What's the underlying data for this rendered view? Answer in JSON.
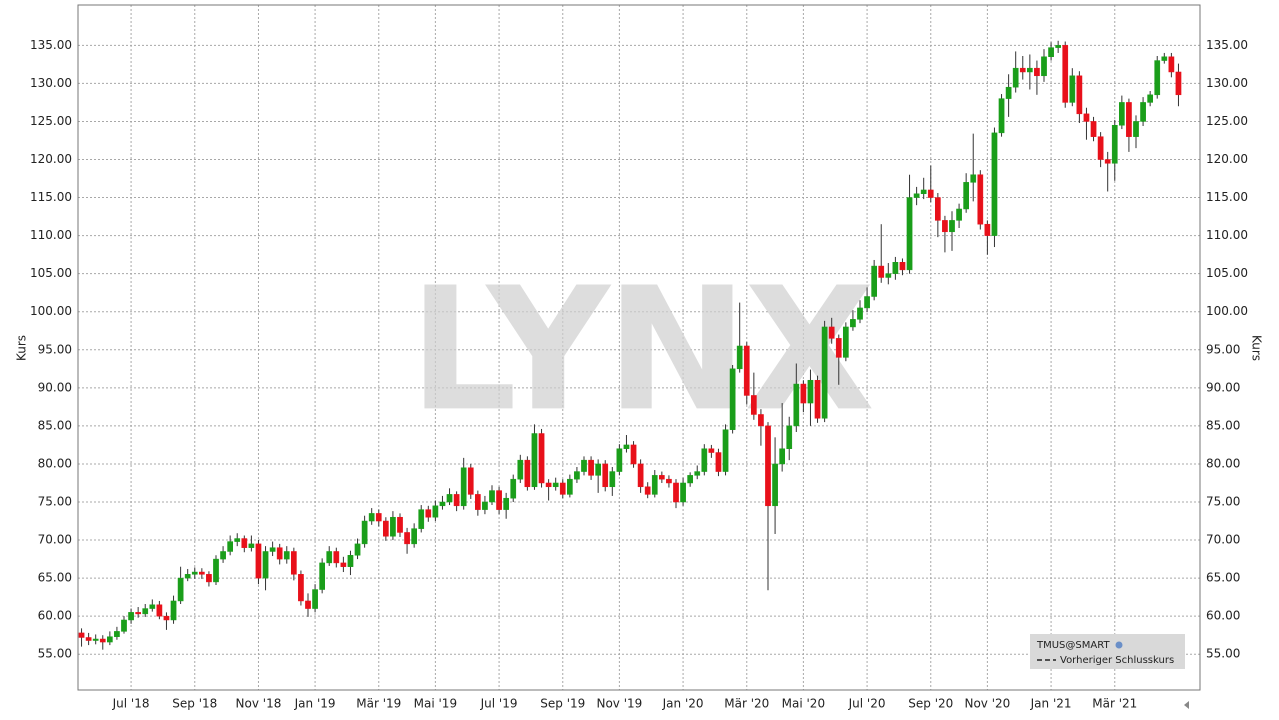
{
  "chart_data": {
    "type": "candlestick",
    "watermark": "LYNX",
    "y_label": "Kurs",
    "y2_label": "Kurs",
    "previous_close_label": "Vorheriger Schlusskurs",
    "up_color": "#1a9e1a",
    "down_color": "#e8101a",
    "grid": true,
    "ylim": [
      50.3,
      140.3
    ],
    "yticks": [
      {
        "value": 55,
        "label": "55.00"
      },
      {
        "value": 60,
        "label": "60.00"
      },
      {
        "value": 65,
        "label": "65.00"
      },
      {
        "value": 70,
        "label": "70.00"
      },
      {
        "value": 75,
        "label": "75.00"
      },
      {
        "value": 80,
        "label": "80.00"
      },
      {
        "value": 85,
        "label": "85.00"
      },
      {
        "value": 90,
        "label": "90.00"
      },
      {
        "value": 95,
        "label": "95.00"
      },
      {
        "value": 100,
        "label": "100.00"
      },
      {
        "value": 105,
        "label": "105.00"
      },
      {
        "value": 110,
        "label": "110.00"
      },
      {
        "value": 115,
        "label": "115.00"
      },
      {
        "value": 120,
        "label": "120.00"
      },
      {
        "value": 125,
        "label": "125.00"
      },
      {
        "value": 130,
        "label": "130.00"
      },
      {
        "value": 135,
        "label": "135.00"
      }
    ],
    "categories": [
      null,
      null,
      null,
      null,
      null,
      null,
      null,
      "Jul '18",
      null,
      null,
      null,
      null,
      null,
      null,
      null,
      null,
      "Sep '18",
      null,
      null,
      null,
      null,
      null,
      null,
      null,
      null,
      "Nov '18",
      null,
      null,
      null,
      null,
      null,
      null,
      null,
      "Jan '19",
      null,
      null,
      null,
      null,
      null,
      null,
      null,
      null,
      "Mär '19",
      null,
      null,
      null,
      null,
      null,
      null,
      null,
      "Mai '19",
      null,
      null,
      null,
      null,
      null,
      null,
      null,
      null,
      "Jul '19",
      null,
      null,
      null,
      null,
      null,
      null,
      null,
      null,
      "Sep '19",
      null,
      null,
      null,
      null,
      null,
      null,
      null,
      "Nov '19",
      null,
      null,
      null,
      null,
      null,
      null,
      null,
      null,
      "Jan '20",
      null,
      null,
      null,
      null,
      null,
      null,
      null,
      null,
      "Mär '20",
      null,
      null,
      null,
      null,
      null,
      null,
      null,
      "Mai '20",
      null,
      null,
      null,
      null,
      null,
      null,
      null,
      null,
      "Jul '20",
      null,
      null,
      null,
      null,
      null,
      null,
      null,
      null,
      "Sep '20",
      null,
      null,
      null,
      null,
      null,
      null,
      null,
      "Nov '20",
      null,
      null,
      null,
      null,
      null,
      null,
      null,
      null,
      "Jan '21",
      null,
      null,
      null,
      null,
      null,
      null,
      null,
      null,
      "Mär '21",
      null,
      null,
      null,
      null,
      null,
      null,
      null,
      null,
      null
    ],
    "series": [
      {
        "name": "TMUS@SMART",
        "values": [
          [
            57.8,
            58.4,
            56.0,
            57.2
          ],
          [
            57.2,
            57.8,
            56.2,
            56.8
          ],
          [
            56.8,
            57.6,
            56.3,
            57.0
          ],
          [
            57.0,
            57.5,
            55.6,
            56.6
          ],
          [
            56.6,
            58.0,
            56.2,
            57.3
          ],
          [
            57.3,
            58.6,
            56.9,
            58.0
          ],
          [
            58.0,
            60.0,
            57.7,
            59.5
          ],
          [
            59.5,
            61.0,
            59.0,
            60.5
          ],
          [
            60.5,
            61.2,
            59.8,
            60.3
          ],
          [
            60.3,
            61.6,
            59.9,
            61.0
          ],
          [
            61.0,
            62.2,
            60.6,
            61.5
          ],
          [
            61.5,
            62.0,
            59.6,
            60.0
          ],
          [
            60.0,
            60.5,
            58.2,
            59.5
          ],
          [
            59.5,
            62.7,
            59.0,
            62.0
          ],
          [
            62.0,
            66.5,
            61.6,
            65.0
          ],
          [
            65.0,
            66.2,
            64.6,
            65.5
          ],
          [
            65.5,
            66.4,
            64.9,
            65.8
          ],
          [
            65.8,
            66.3,
            64.9,
            65.5
          ],
          [
            65.5,
            65.9,
            63.9,
            64.5
          ],
          [
            64.5,
            68.0,
            64.1,
            67.5
          ],
          [
            67.5,
            69.2,
            67.0,
            68.5
          ],
          [
            68.5,
            70.6,
            68.0,
            69.8
          ],
          [
            69.8,
            70.9,
            69.2,
            70.2
          ],
          [
            70.2,
            70.6,
            68.4,
            69.0
          ],
          [
            69.0,
            70.6,
            68.5,
            69.5
          ],
          [
            69.5,
            70.0,
            64.2,
            65.0
          ],
          [
            65.0,
            69.2,
            63.4,
            68.5
          ],
          [
            68.5,
            69.8,
            67.9,
            69.0
          ],
          [
            69.0,
            69.5,
            66.8,
            67.5
          ],
          [
            67.5,
            69.2,
            66.9,
            68.5
          ],
          [
            68.5,
            69.0,
            64.7,
            65.5
          ],
          [
            65.5,
            66.0,
            61.4,
            62.0
          ],
          [
            62.0,
            63.0,
            59.9,
            61.0
          ],
          [
            61.0,
            64.2,
            60.5,
            63.5
          ],
          [
            63.5,
            67.6,
            63.0,
            67.0
          ],
          [
            67.0,
            69.2,
            66.6,
            68.5
          ],
          [
            68.5,
            69.0,
            66.4,
            67.0
          ],
          [
            67.0,
            67.8,
            65.8,
            66.5
          ],
          [
            66.5,
            68.6,
            65.4,
            68.0
          ],
          [
            68.0,
            70.2,
            67.5,
            69.5
          ],
          [
            69.5,
            73.2,
            69.0,
            72.5
          ],
          [
            72.5,
            74.2,
            72.0,
            73.5
          ],
          [
            73.5,
            74.0,
            71.8,
            72.5
          ],
          [
            72.5,
            73.0,
            69.9,
            70.5
          ],
          [
            70.5,
            73.8,
            70.0,
            73.0
          ],
          [
            73.0,
            73.5,
            70.4,
            71.0
          ],
          [
            71.0,
            71.6,
            68.2,
            69.5
          ],
          [
            69.5,
            72.2,
            69.0,
            71.5
          ],
          [
            71.5,
            74.6,
            71.0,
            74.0
          ],
          [
            74.0,
            74.5,
            72.4,
            73.0
          ],
          [
            73.0,
            75.2,
            72.5,
            74.5
          ],
          [
            74.5,
            75.8,
            74.0,
            75.0
          ],
          [
            75.0,
            76.8,
            74.6,
            76.0
          ],
          [
            76.0,
            76.4,
            73.8,
            74.5
          ],
          [
            74.5,
            80.8,
            74.0,
            79.5
          ],
          [
            79.5,
            80.0,
            75.4,
            76.0
          ],
          [
            76.0,
            76.5,
            73.2,
            74.0
          ],
          [
            74.0,
            75.8,
            73.4,
            75.0
          ],
          [
            75.0,
            77.2,
            74.6,
            76.5
          ],
          [
            76.5,
            77.0,
            73.4,
            74.0
          ],
          [
            74.0,
            76.2,
            72.8,
            75.5
          ],
          [
            75.5,
            78.6,
            75.0,
            78.0
          ],
          [
            78.0,
            81.2,
            77.5,
            80.5
          ],
          [
            80.5,
            81.0,
            76.5,
            77.0
          ],
          [
            77.0,
            85.2,
            76.6,
            84.0
          ],
          [
            84.0,
            84.6,
            76.9,
            77.5
          ],
          [
            77.5,
            78.0,
            75.2,
            77.0
          ],
          [
            77.0,
            78.2,
            76.5,
            77.5
          ],
          [
            77.5,
            78.0,
            75.5,
            76.0
          ],
          [
            76.0,
            78.6,
            75.6,
            78.0
          ],
          [
            78.0,
            79.6,
            77.5,
            79.0
          ],
          [
            79.0,
            81.0,
            78.5,
            80.5
          ],
          [
            80.5,
            81.0,
            77.9,
            78.5
          ],
          [
            78.5,
            80.6,
            76.2,
            80.0
          ],
          [
            80.0,
            80.5,
            76.4,
            77.0
          ],
          [
            77.0,
            79.6,
            75.8,
            79.0
          ],
          [
            79.0,
            82.6,
            78.5,
            82.0
          ],
          [
            82.0,
            83.8,
            81.5,
            82.5
          ],
          [
            82.5,
            83.0,
            79.5,
            80.0
          ],
          [
            80.0,
            80.6,
            76.2,
            77.0
          ],
          [
            77.0,
            77.6,
            75.5,
            76.0
          ],
          [
            76.0,
            79.2,
            75.6,
            78.5
          ],
          [
            78.5,
            79.0,
            77.5,
            78.0
          ],
          [
            78.0,
            78.5,
            76.9,
            77.5
          ],
          [
            77.5,
            78.0,
            74.2,
            75.0
          ],
          [
            75.0,
            78.2,
            74.5,
            77.5
          ],
          [
            77.5,
            78.9,
            77.0,
            78.5
          ],
          [
            78.5,
            79.8,
            78.0,
            79.0
          ],
          [
            79.0,
            82.6,
            78.5,
            82.0
          ],
          [
            82.0,
            82.5,
            80.8,
            81.5
          ],
          [
            81.5,
            82.0,
            78.4,
            79.0
          ],
          [
            79.0,
            85.2,
            78.5,
            84.5
          ],
          [
            84.5,
            93.0,
            84.0,
            92.5
          ],
          [
            92.5,
            101.2,
            92.0,
            95.5
          ],
          [
            95.5,
            96.0,
            87.8,
            89.0
          ],
          [
            89.0,
            92.0,
            85.8,
            86.5
          ],
          [
            86.5,
            87.2,
            82.4,
            85.0
          ],
          [
            85.0,
            85.5,
            63.4,
            74.5
          ],
          [
            74.5,
            83.5,
            70.8,
            80.0
          ],
          [
            80.0,
            88.0,
            79.0,
            82.0
          ],
          [
            82.0,
            86.2,
            80.5,
            85.0
          ],
          [
            85.0,
            93.2,
            84.2,
            90.5
          ],
          [
            90.5,
            91.0,
            86.8,
            88.0
          ],
          [
            88.0,
            92.4,
            85.0,
            91.0
          ],
          [
            91.0,
            91.6,
            85.4,
            86.0
          ],
          [
            86.0,
            98.8,
            85.5,
            98.0
          ],
          [
            98.0,
            99.2,
            95.8,
            96.5
          ],
          [
            96.5,
            97.0,
            90.4,
            94.0
          ],
          [
            94.0,
            98.6,
            93.5,
            98.0
          ],
          [
            98.0,
            100.2,
            97.5,
            99.0
          ],
          [
            99.0,
            101.5,
            98.5,
            100.5
          ],
          [
            100.5,
            103.2,
            100.0,
            102.0
          ],
          [
            102.0,
            106.8,
            101.5,
            106.0
          ],
          [
            106.0,
            111.5,
            103.8,
            104.5
          ],
          [
            104.5,
            106.4,
            103.6,
            105.0
          ],
          [
            105.0,
            107.2,
            104.2,
            106.5
          ],
          [
            106.5,
            107.0,
            104.8,
            105.5
          ],
          [
            105.5,
            118.0,
            105.0,
            115.0
          ],
          [
            115.0,
            116.4,
            114.0,
            115.5
          ],
          [
            115.5,
            117.6,
            114.8,
            116.0
          ],
          [
            116.0,
            119.2,
            114.4,
            115.0
          ],
          [
            115.0,
            115.6,
            109.8,
            112.0
          ],
          [
            112.0,
            112.6,
            107.8,
            110.5
          ],
          [
            110.5,
            113.2,
            108.0,
            112.0
          ],
          [
            112.0,
            114.2,
            111.0,
            113.5
          ],
          [
            113.5,
            118.2,
            113.0,
            117.0
          ],
          [
            117.0,
            123.4,
            114.5,
            118.0
          ],
          [
            118.0,
            118.6,
            110.8,
            111.5
          ],
          [
            111.5,
            112.0,
            107.5,
            110.0
          ],
          [
            110.0,
            124.2,
            108.5,
            123.5
          ],
          [
            123.5,
            128.6,
            123.0,
            128.0
          ],
          [
            128.0,
            131.2,
            125.6,
            129.5
          ],
          [
            129.5,
            134.2,
            128.8,
            132.0
          ],
          [
            132.0,
            133.6,
            130.5,
            131.5
          ],
          [
            131.5,
            133.8,
            129.2,
            132.0
          ],
          [
            132.0,
            133.0,
            128.5,
            131.0
          ],
          [
            131.0,
            134.5,
            130.2,
            133.5
          ],
          [
            133.5,
            135.4,
            133.0,
            134.7
          ],
          [
            134.7,
            135.6,
            134.0,
            135.0
          ],
          [
            135.0,
            135.5,
            126.8,
            127.5
          ],
          [
            127.5,
            132.0,
            127.0,
            131.0
          ],
          [
            131.0,
            131.6,
            124.8,
            126.0
          ],
          [
            126.0,
            126.8,
            122.6,
            125.0
          ],
          [
            125.0,
            125.6,
            122.4,
            123.0
          ],
          [
            123.0,
            123.6,
            119.0,
            120.0
          ],
          [
            120.0,
            121.0,
            115.8,
            119.5
          ],
          [
            119.5,
            125.2,
            117.2,
            124.5
          ],
          [
            124.5,
            128.4,
            124.0,
            127.5
          ],
          [
            127.5,
            128.0,
            121.0,
            123.0
          ],
          [
            123.0,
            125.8,
            121.5,
            125.0
          ],
          [
            125.0,
            128.2,
            124.4,
            127.5
          ],
          [
            127.5,
            129.0,
            127.0,
            128.5
          ],
          [
            128.5,
            133.6,
            128.0,
            133.0
          ],
          [
            133.0,
            134.0,
            132.6,
            133.5
          ],
          [
            133.5,
            134.0,
            130.8,
            131.5
          ],
          [
            131.5,
            132.6,
            127.0,
            128.5
          ]
        ]
      }
    ]
  }
}
